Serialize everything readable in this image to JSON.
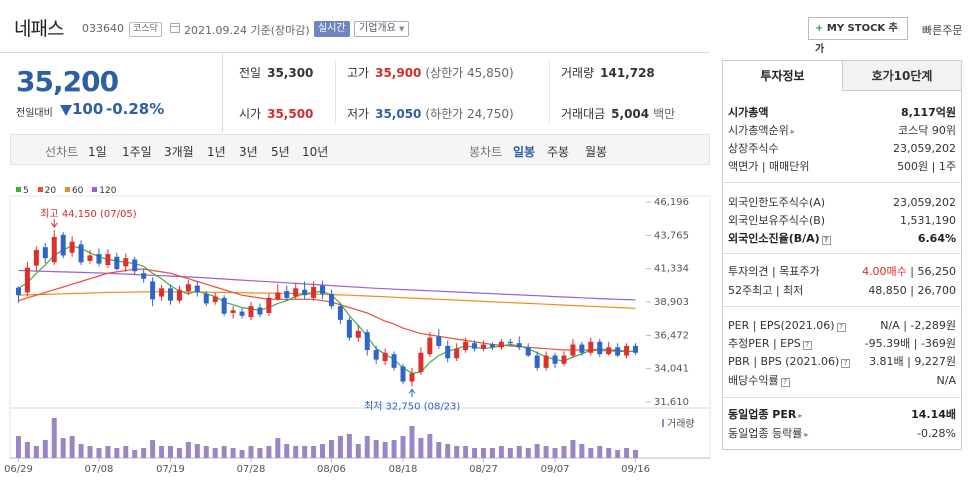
{
  "header": {
    "name": "네패스",
    "code": "033640",
    "market": "코스닥",
    "date": "2021.09.24 기준(장마감)",
    "realtime": "실시간",
    "corp_info": "기업개요",
    "mystock": "MY STOCK 추가",
    "quick_order": "빠른주문"
  },
  "price": {
    "current": "35,200",
    "prev_label": "전일대비",
    "change": "100",
    "change_pct": "-0.28%"
  },
  "stats": {
    "prev_close_label": "전일",
    "prev_close": "35,300",
    "high_label": "고가",
    "high": "35,900",
    "upper_limit": "(상한가 45,850)",
    "volume_label": "거래량",
    "volume": "141,728",
    "open_label": "시가",
    "open": "35,500",
    "low_label": "저가",
    "low": "35,050",
    "lower_limit": "(하한가 24,750)",
    "amount_label": "거래대금",
    "amount": "5,004",
    "amount_unit": "백만"
  },
  "period_bar": {
    "line_label": "선차트",
    "line_periods": [
      "1일",
      "1주일",
      "3개월",
      "1년",
      "3년",
      "5년",
      "10년"
    ],
    "candle_label": "봉차트",
    "candle_periods": [
      "일봉",
      "주봉",
      "월봉"
    ],
    "active": "일봉"
  },
  "chart_data": {
    "type": "candlestick",
    "legend": [
      {
        "name": "5",
        "color": "#3cb043"
      },
      {
        "name": "20",
        "color": "#e8503a"
      },
      {
        "name": "60",
        "color": "#f08c1c"
      },
      {
        "name": "120",
        "color": "#9a5fd3"
      }
    ],
    "y_ticks": [
      "46,196",
      "43,765",
      "41,334",
      "38,903",
      "36,472",
      "34,041",
      "31,610"
    ],
    "ylim": [
      31610,
      46196
    ],
    "x_ticks": [
      "06/29",
      "07/08",
      "07/19",
      "07/28",
      "08/06",
      "08/18",
      "08/27",
      "09/07",
      "09/16"
    ],
    "high_annotation": "최고 44,150 (07/05)",
    "low_annotation": "최저 32,750 (08/23)",
    "volume_label": "거래량",
    "candles": [
      {
        "o": 39950,
        "c": 39400,
        "h": 40050,
        "l": 38850
      },
      {
        "o": 39600,
        "c": 41400,
        "h": 41850,
        "l": 39300
      },
      {
        "o": 41550,
        "c": 42700,
        "h": 42950,
        "l": 41200
      },
      {
        "o": 42900,
        "c": 42100,
        "h": 43200,
        "l": 41700
      },
      {
        "o": 41800,
        "c": 43650,
        "h": 44150,
        "l": 41600
      },
      {
        "o": 43800,
        "c": 42300,
        "h": 44000,
        "l": 42100
      },
      {
        "o": 42500,
        "c": 43300,
        "h": 43700,
        "l": 42200
      },
      {
        "o": 43100,
        "c": 41800,
        "h": 43400,
        "l": 41600
      },
      {
        "o": 41900,
        "c": 42300,
        "h": 42700,
        "l": 41700
      },
      {
        "o": 42400,
        "c": 41700,
        "h": 42800,
        "l": 41500
      },
      {
        "o": 41600,
        "c": 42400,
        "h": 42750,
        "l": 41400
      },
      {
        "o": 42200,
        "c": 41300,
        "h": 42500,
        "l": 41200
      },
      {
        "o": 41500,
        "c": 42100,
        "h": 42450,
        "l": 41100
      },
      {
        "o": 42000,
        "c": 41150,
        "h": 42200,
        "l": 40900
      },
      {
        "o": 41000,
        "c": 40600,
        "h": 41300,
        "l": 40300
      },
      {
        "o": 40400,
        "c": 39100,
        "h": 40700,
        "l": 38600
      },
      {
        "o": 39300,
        "c": 39900,
        "h": 40150,
        "l": 39000
      },
      {
        "o": 39900,
        "c": 39000,
        "h": 40200,
        "l": 38700
      },
      {
        "o": 39000,
        "c": 39800,
        "h": 40100,
        "l": 38800
      },
      {
        "o": 39700,
        "c": 40200,
        "h": 40500,
        "l": 39400
      },
      {
        "o": 40100,
        "c": 39600,
        "h": 40400,
        "l": 39300
      },
      {
        "o": 39500,
        "c": 38800,
        "h": 39700,
        "l": 38600
      },
      {
        "o": 38900,
        "c": 39300,
        "h": 39600,
        "l": 38700
      },
      {
        "o": 39200,
        "c": 38050,
        "h": 39400,
        "l": 37900
      },
      {
        "o": 38100,
        "c": 38300,
        "h": 38600,
        "l": 37700
      },
      {
        "o": 38200,
        "c": 37900,
        "h": 38500,
        "l": 37700
      },
      {
        "o": 37800,
        "c": 38600,
        "h": 38900,
        "l": 37600
      },
      {
        "o": 38500,
        "c": 38000,
        "h": 38800,
        "l": 37800
      },
      {
        "o": 38100,
        "c": 39200,
        "h": 39500,
        "l": 37900
      },
      {
        "o": 39100,
        "c": 39600,
        "h": 40200,
        "l": 39000
      },
      {
        "o": 39700,
        "c": 39200,
        "h": 40100,
        "l": 39000
      },
      {
        "o": 39300,
        "c": 39900,
        "h": 40300,
        "l": 39100
      },
      {
        "o": 39800,
        "c": 39400,
        "h": 40400,
        "l": 39100
      },
      {
        "o": 39200,
        "c": 40000,
        "h": 40400,
        "l": 39000
      },
      {
        "o": 40100,
        "c": 39500,
        "h": 40450,
        "l": 39100
      },
      {
        "o": 39500,
        "c": 38600,
        "h": 39800,
        "l": 38400
      },
      {
        "o": 38600,
        "c": 37600,
        "h": 38800,
        "l": 37300
      },
      {
        "o": 37600,
        "c": 36300,
        "h": 37800,
        "l": 36100
      },
      {
        "o": 36300,
        "c": 36800,
        "h": 37200,
        "l": 36000
      },
      {
        "o": 36700,
        "c": 35400,
        "h": 36900,
        "l": 35000
      },
      {
        "o": 35400,
        "c": 34700,
        "h": 35700,
        "l": 34400
      },
      {
        "o": 34600,
        "c": 35200,
        "h": 35500,
        "l": 34300
      },
      {
        "o": 35100,
        "c": 34100,
        "h": 35300,
        "l": 33900
      },
      {
        "o": 34200,
        "c": 33100,
        "h": 34400,
        "l": 32900
      },
      {
        "o": 33100,
        "c": 33700,
        "h": 34100,
        "l": 32750
      },
      {
        "o": 33800,
        "c": 35200,
        "h": 35600,
        "l": 33600
      },
      {
        "o": 35100,
        "c": 36300,
        "h": 36700,
        "l": 34900
      },
      {
        "o": 36400,
        "c": 35700,
        "h": 36900,
        "l": 35500
      },
      {
        "o": 35700,
        "c": 34800,
        "h": 36100,
        "l": 34500
      },
      {
        "o": 34800,
        "c": 35500,
        "h": 35900,
        "l": 34600
      },
      {
        "o": 35400,
        "c": 36000,
        "h": 36300,
        "l": 35200
      },
      {
        "o": 35900,
        "c": 35500,
        "h": 36100,
        "l": 35300
      },
      {
        "o": 35500,
        "c": 35800,
        "h": 36100,
        "l": 35300
      },
      {
        "o": 35800,
        "c": 35600,
        "h": 35950,
        "l": 35400
      },
      {
        "o": 35600,
        "c": 36000,
        "h": 36200,
        "l": 35400
      },
      {
        "o": 36000,
        "c": 35900,
        "h": 36200,
        "l": 35700
      },
      {
        "o": 35900,
        "c": 35600,
        "h": 36400,
        "l": 35400
      },
      {
        "o": 35600,
        "c": 35000,
        "h": 35900,
        "l": 34900
      },
      {
        "o": 35000,
        "c": 34100,
        "h": 35300,
        "l": 33900
      },
      {
        "o": 34100,
        "c": 35000,
        "h": 35300,
        "l": 33900
      },
      {
        "o": 35000,
        "c": 34400,
        "h": 35200,
        "l": 34100
      },
      {
        "o": 34400,
        "c": 35000,
        "h": 35300,
        "l": 34200
      },
      {
        "o": 35000,
        "c": 35800,
        "h": 36200,
        "l": 34800
      },
      {
        "o": 35800,
        "c": 35200,
        "h": 36000,
        "l": 35000
      },
      {
        "o": 35200,
        "c": 36000,
        "h": 36300,
        "l": 35000
      },
      {
        "o": 36000,
        "c": 35100,
        "h": 36200,
        "l": 34900
      },
      {
        "o": 35100,
        "c": 35600,
        "h": 36000,
        "l": 35000
      },
      {
        "o": 35600,
        "c": 35000,
        "h": 35900,
        "l": 34900
      },
      {
        "o": 35000,
        "c": 35700,
        "h": 35900,
        "l": 34800
      },
      {
        "o": 35700,
        "c": 35200,
        "h": 35900,
        "l": 35050
      }
    ],
    "ma5": [
      39900,
      40300,
      41000,
      41600,
      42300,
      42700,
      43000,
      42800,
      42500,
      42200,
      42000,
      41900,
      41800,
      41700,
      41500,
      41000,
      40600,
      40100,
      39700,
      39500,
      39700,
      39500,
      39300,
      38900,
      38700,
      38500,
      38400,
      38300,
      38500,
      38800,
      39000,
      39300,
      39500,
      39600,
      39700,
      39400,
      38800,
      37900,
      37200,
      36400,
      35500,
      35100,
      34700,
      34100,
      33700,
      33800,
      34500,
      35000,
      35300,
      35500,
      35700,
      35600,
      35500,
      35600,
      35700,
      35800,
      35700,
      35500,
      35200,
      34900,
      34700,
      34600,
      34900,
      35100,
      35400,
      35500,
      35400,
      35400,
      35300,
      35300
    ],
    "ma20": [
      39000,
      39200,
      39400,
      39600,
      39800,
      40000,
      40200,
      40400,
      40600,
      40800,
      41000,
      41100,
      41200,
      41300,
      41300,
      41200,
      41100,
      41000,
      40800,
      40600,
      40400,
      40200,
      40000,
      39800,
      39600,
      39400,
      39300,
      39200,
      39100,
      39100,
      39100,
      39100,
      39100,
      39100,
      39000,
      38900,
      38700,
      38500,
      38300,
      38100,
      37800,
      37500,
      37300,
      37000,
      36800,
      36600,
      36500,
      36400,
      36300,
      36200,
      36100,
      36000,
      35900,
      35800,
      35750,
      35700,
      35650,
      35600,
      35550,
      35500,
      35450,
      35400,
      35400,
      35400,
      35400,
      35350,
      35350,
      35300,
      35300,
      35300
    ],
    "ma60": [
      39400,
      39420,
      39440,
      39460,
      39480,
      39500,
      39520,
      39540,
      39560,
      39580,
      39600,
      39610,
      39620,
      39630,
      39640,
      39650,
      39650,
      39650,
      39650,
      39640,
      39630,
      39620,
      39610,
      39600,
      39590,
      39580,
      39570,
      39560,
      39550,
      39540,
      39530,
      39520,
      39500,
      39480,
      39460,
      39440,
      39420,
      39400,
      39370,
      39340,
      39310,
      39280,
      39250,
      39220,
      39190,
      39160,
      39130,
      39100,
      39070,
      39040,
      39010,
      38980,
      38950,
      38920,
      38890,
      38860,
      38830,
      38800,
      38770,
      38740,
      38710,
      38680,
      38650,
      38620,
      38590,
      38560,
      38530,
      38500,
      38470,
      38440
    ],
    "ma120": [
      41200,
      41180,
      41160,
      41140,
      41120,
      41100,
      41080,
      41060,
      41040,
      41020,
      41000,
      40970,
      40940,
      40910,
      40880,
      40850,
      40820,
      40790,
      40760,
      40730,
      40700,
      40660,
      40620,
      40580,
      40540,
      40500,
      40460,
      40420,
      40380,
      40340,
      40300,
      40260,
      40220,
      40180,
      40140,
      40100,
      40060,
      40020,
      39980,
      39940,
      39900,
      39870,
      39840,
      39810,
      39780,
      39750,
      39720,
      39690,
      39660,
      39630,
      39600,
      39570,
      39540,
      39510,
      39480,
      39450,
      39420,
      39390,
      39360,
      39330,
      39300,
      39270,
      39240,
      39210,
      39180,
      39150,
      39120,
      39100,
      39080,
      39060
    ],
    "volume": [
      0.55,
      0.4,
      0.3,
      0.45,
      1.0,
      0.5,
      0.55,
      0.35,
      0.3,
      0.25,
      0.3,
      0.25,
      0.3,
      0.2,
      0.25,
      0.45,
      0.3,
      0.3,
      0.25,
      0.4,
      0.35,
      0.3,
      0.25,
      0.3,
      0.25,
      0.2,
      0.3,
      0.25,
      0.3,
      0.5,
      0.35,
      0.3,
      0.3,
      0.3,
      0.35,
      0.45,
      0.55,
      0.6,
      0.35,
      0.55,
      0.45,
      0.4,
      0.45,
      0.55,
      0.8,
      0.5,
      0.6,
      0.4,
      0.35,
      0.3,
      0.3,
      0.25,
      0.25,
      0.25,
      0.3,
      0.25,
      0.3,
      0.25,
      0.35,
      0.3,
      0.25,
      0.3,
      0.45,
      0.35,
      0.25,
      0.3,
      0.25,
      0.2,
      0.25,
      0.2
    ]
  },
  "right_panel": {
    "tabs": [
      "투자정보",
      "호가10단계"
    ],
    "rows": [
      {
        "k": "시가총액",
        "v": "8,117억원"
      },
      {
        "k": "시가총액순위",
        "v": "코스닥 90위"
      },
      {
        "k": "상장주식수",
        "v": "23,059,202"
      },
      {
        "k": "액면가 | 매매단위",
        "v": "500원 | 1주"
      },
      {
        "k": "외국인한도주식수(A)",
        "v": "23,059,202"
      },
      {
        "k": "외국인보유주식수(B)",
        "v": "1,531,190"
      },
      {
        "k": "외국인소진율(B/A)",
        "v": "6.64%"
      },
      {
        "k": "투자의견 | 목표주가",
        "v_red": "4.00매수",
        "v": "| 56,250"
      },
      {
        "k": "52주최고 | 최저",
        "v": "48,850 | 26,700"
      },
      {
        "k": "PER | EPS(2021.06)",
        "v": "N/A | -2,289원"
      },
      {
        "k": "추정PER | EPS",
        "v": "-95.39배 | -369원"
      },
      {
        "k": "PBR | BPS (2021.06)",
        "v": "3.81배 | 9,227원"
      },
      {
        "k": "배당수익률",
        "v": "N/A"
      },
      {
        "k": "동일업종 PER",
        "v": "14.14배"
      },
      {
        "k": "동일업종 등락률",
        "v": "-0.28%"
      }
    ]
  }
}
